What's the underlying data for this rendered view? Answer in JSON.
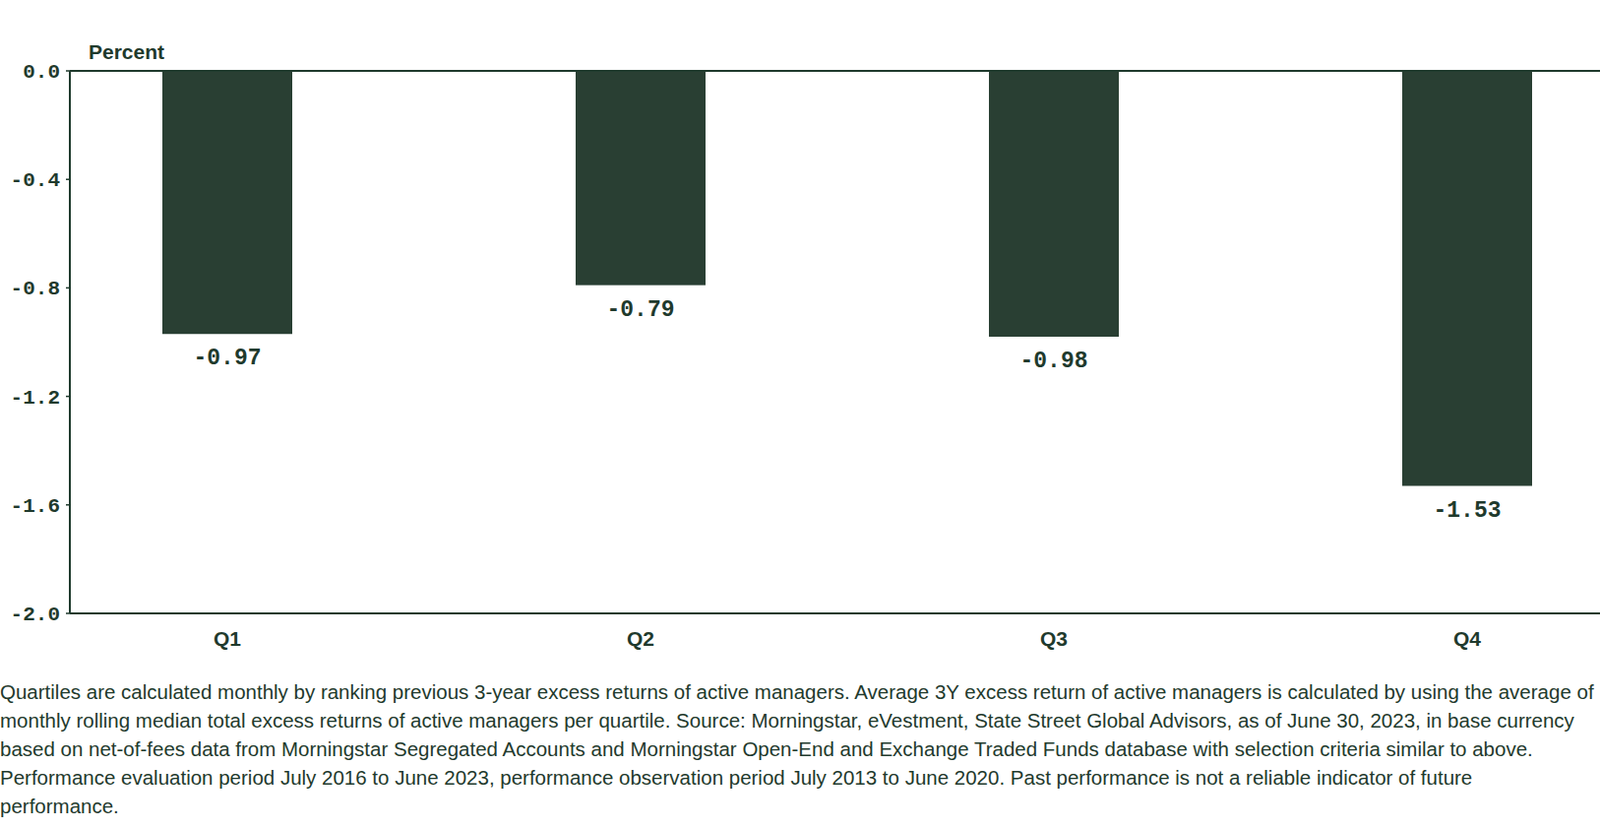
{
  "chart_data": {
    "type": "bar",
    "y_label": "Percent",
    "categories": [
      "Q1",
      "Q2",
      "Q3",
      "Q4"
    ],
    "values": [
      -0.97,
      -0.79,
      -0.98,
      -1.53
    ],
    "color": "#293f33",
    "ylim": [
      -2.0,
      0.0
    ],
    "yticks": [
      {
        "value": 0.0,
        "label": "0.0"
      },
      -0.4,
      -0.8,
      -1.2,
      -1.6,
      {
        "value": -2.0,
        "label": "-2.0"
      }
    ],
    "grid": false,
    "data_labels": true,
    "note": "Quartiles are calculated monthly by ranking previous 3-year excess returns of active managers. Average 3Y excess return of active managers is calculated by using the average of monthly rolling median total excess returns of active managers per quartile. Source: Morningstar, eVestment, State Street Global Advisors, as of June 30, 2023, in base currency based on net-of-fees data from Morningstar Segregated Accounts and Morningstar Open-End and Exchange Traded Funds database with selection criteria similar to above. Performance evaluation period July 2016 to June 2023, performance observation period July 2013 to June 2020. Past performance is not a reliable indicator of future performance."
  }
}
